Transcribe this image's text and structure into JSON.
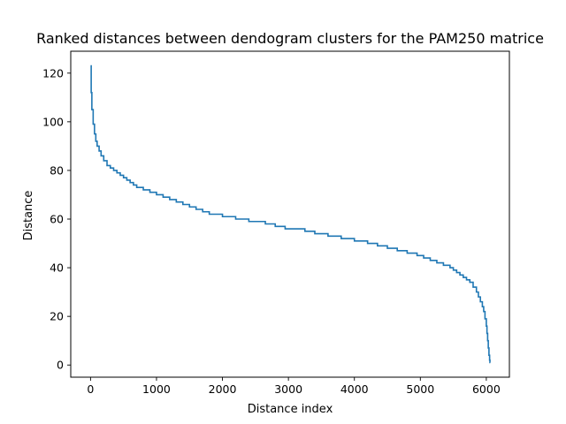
{
  "chart_data": {
    "type": "line",
    "title": "Ranked distances between dendogram clusters for the PAM250 matrice",
    "xlabel": "Distance index",
    "ylabel": "Distance",
    "xlim": [
      -300,
      6350
    ],
    "ylim": [
      -5,
      129
    ],
    "xticks": [
      0,
      1000,
      2000,
      3000,
      4000,
      5000,
      6000
    ],
    "yticks": [
      0,
      20,
      40,
      60,
      80,
      100,
      120
    ],
    "grid": false,
    "series": [
      {
        "name": "ranked distances",
        "color": "#1f77b4",
        "x": [
          0,
          10,
          20,
          40,
          60,
          80,
          100,
          130,
          160,
          200,
          250,
          300,
          350,
          400,
          450,
          500,
          550,
          600,
          650,
          700,
          800,
          900,
          1000,
          1100,
          1200,
          1300,
          1400,
          1500,
          1600,
          1700,
          1800,
          1900,
          2000,
          2100,
          2200,
          2300,
          2400,
          2500,
          2650,
          2800,
          2950,
          3100,
          3250,
          3400,
          3600,
          3800,
          4000,
          4200,
          4350,
          4500,
          4650,
          4800,
          4950,
          5050,
          5150,
          5250,
          5350,
          5450,
          5500,
          5550,
          5600,
          5650,
          5700,
          5750,
          5800,
          5850,
          5880,
          5910,
          5940,
          5960,
          5980,
          6000,
          6010,
          6020,
          6030,
          6040,
          6050,
          6055,
          6060
        ],
        "values": [
          123,
          112,
          105,
          99,
          95,
          92,
          90,
          88,
          86,
          84,
          82,
          81,
          80,
          79,
          78,
          77,
          76,
          75,
          74,
          73,
          72,
          71,
          70,
          69,
          68,
          67,
          66,
          65,
          64,
          63,
          62,
          62,
          61,
          61,
          60,
          60,
          59,
          59,
          58,
          57,
          56,
          56,
          55,
          54,
          53,
          52,
          51,
          50,
          49,
          48,
          47,
          46,
          45,
          44,
          43,
          42,
          41,
          40,
          39,
          38,
          37,
          36,
          35,
          34,
          32,
          30,
          28,
          26,
          24,
          22,
          19,
          16,
          13,
          10,
          7,
          4,
          2,
          1,
          1
        ]
      }
    ]
  }
}
